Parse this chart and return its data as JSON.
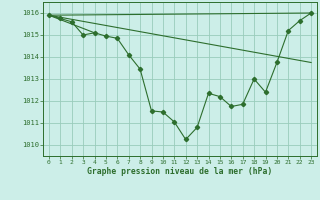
{
  "title": "Graphe pression niveau de la mer (hPa)",
  "bg_color": "#cceee8",
  "grid_color": "#99ccbb",
  "line_color": "#2d6e2d",
  "xlim": [
    -0.5,
    23.5
  ],
  "ylim": [
    1009.5,
    1016.5
  ],
  "yticks": [
    1010,
    1011,
    1012,
    1013,
    1014,
    1015,
    1016
  ],
  "xticks": [
    0,
    1,
    2,
    3,
    4,
    5,
    6,
    7,
    8,
    9,
    10,
    11,
    12,
    13,
    14,
    15,
    16,
    17,
    18,
    19,
    20,
    21,
    22,
    23
  ],
  "main_series": {
    "x": [
      0,
      1,
      2,
      3,
      4,
      5,
      6,
      7,
      8,
      9,
      10,
      11,
      12,
      13,
      14,
      15,
      16,
      17,
      18,
      19,
      20,
      21,
      22,
      23
    ],
    "y": [
      1015.9,
      1015.75,
      1015.6,
      1015.0,
      1015.1,
      1014.95,
      1014.85,
      1014.1,
      1013.45,
      1011.55,
      1011.5,
      1011.05,
      1010.25,
      1010.8,
      1012.35,
      1012.2,
      1011.75,
      1011.85,
      1013.0,
      1012.4,
      1013.75,
      1015.2,
      1015.65,
      1016.0
    ]
  },
  "extra_lines": [
    {
      "x": [
        0,
        23
      ],
      "y": [
        1015.9,
        1016.0
      ]
    },
    {
      "x": [
        0,
        23
      ],
      "y": [
        1015.9,
        1013.75
      ]
    },
    {
      "x": [
        0,
        23
      ],
      "y": [
        1015.9,
        1016.0
      ]
    }
  ],
  "straight_lines": [
    [
      0,
      1015.9,
      4,
      1015.1
    ],
    [
      0,
      1015.9,
      23,
      1016.0
    ],
    [
      0,
      1015.9,
      23,
      1013.75
    ]
  ]
}
